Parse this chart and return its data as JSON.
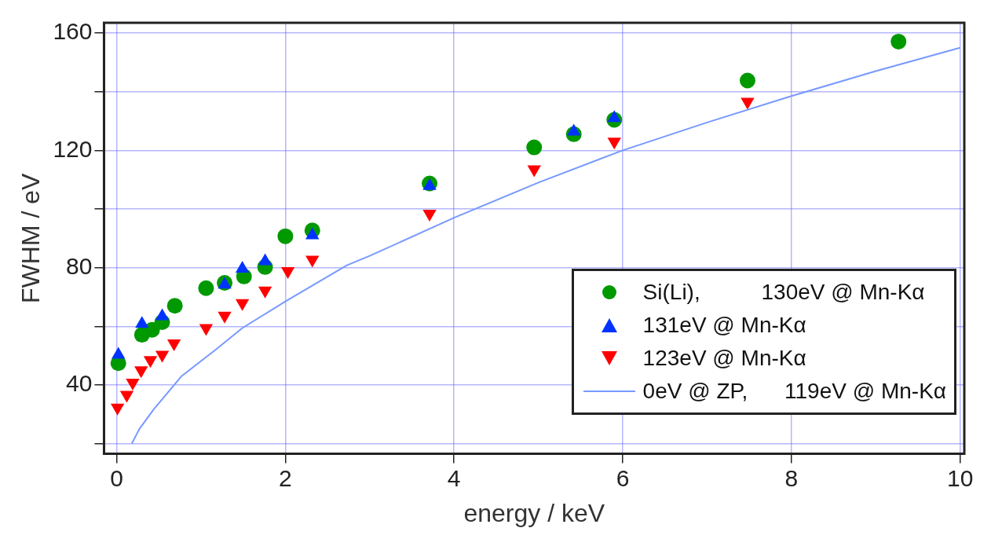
{
  "chart_data": {
    "type": "scatter",
    "xlabel": "energy / keV",
    "ylabel": "FWHM / eV",
    "xlim": [
      -0.15,
      10.05
    ],
    "ylim": [
      16.5,
      163.5
    ],
    "xticks": [
      0,
      2,
      4,
      6,
      8,
      10
    ],
    "yticks": [
      {
        "value": 20,
        "label": null
      },
      40,
      {
        "value": 60,
        "label": null
      },
      80,
      {
        "value": 100,
        "label": null
      },
      120,
      {
        "value": 140,
        "label": null
      },
      160
    ],
    "grid": true,
    "legend": "bottom right",
    "series": [
      {
        "name": "Si(Li),          130eV @ Mn-Kα",
        "color": "#009900",
        "marker": "circle",
        "x": [
          0.02,
          0.3,
          0.42,
          0.54,
          0.69,
          1.06,
          1.28,
          1.51,
          1.76,
          2.0,
          2.32,
          3.71,
          4.95,
          5.42,
          5.9,
          7.48,
          9.27
        ],
        "values": [
          47.4,
          57.1,
          58.8,
          61.4,
          67,
          73,
          74.8,
          77,
          80.2,
          90.7,
          92.7,
          108.7,
          121,
          125.5,
          130.4,
          143.8,
          157.1
        ]
      },
      {
        "name": "131eV @ Mn-Kα",
        "color": "#0033ff",
        "marker": "triangle",
        "x": [
          0.02,
          0.3,
          0.54,
          1.28,
          1.49,
          1.76,
          2.32,
          3.71,
          5.42,
          5.9
        ],
        "values": [
          50.3,
          60.8,
          63.4,
          74.2,
          79.6,
          82.2,
          91,
          107.8,
          126.4,
          131
        ]
      },
      {
        "name": "123eV @ Mn-Kα",
        "color": "#ff0000",
        "marker": "triangle-down",
        "x": [
          0.01,
          0.12,
          0.19,
          0.29,
          0.4,
          0.54,
          0.68,
          1.06,
          1.28,
          1.49,
          1.76,
          2.03,
          2.32,
          3.71,
          4.95,
          5.9,
          7.48
        ],
        "values": [
          32.3,
          36.6,
          40.8,
          45,
          48.5,
          50.3,
          54.2,
          59.4,
          63.6,
          67.9,
          72.2,
          78.8,
          82.7,
          98.4,
          113.5,
          123,
          136.6
        ]
      },
      {
        "name": "0eV @ ZP,      119eV @ Mn-Kα",
        "type": "line",
        "color": "#7799ff",
        "marker": "none",
        "x": [
          0.18,
          0.27,
          0.44,
          0.77,
          1.16,
          1.49,
          2.02,
          2.73,
          3,
          4,
          5,
          6,
          7,
          8,
          9,
          10
        ],
        "values": [
          20,
          25,
          31.7,
          43,
          51.7,
          59.4,
          68.8,
          80.8,
          84,
          97,
          109,
          120,
          129.5,
          138.5,
          147,
          155
        ]
      }
    ]
  }
}
